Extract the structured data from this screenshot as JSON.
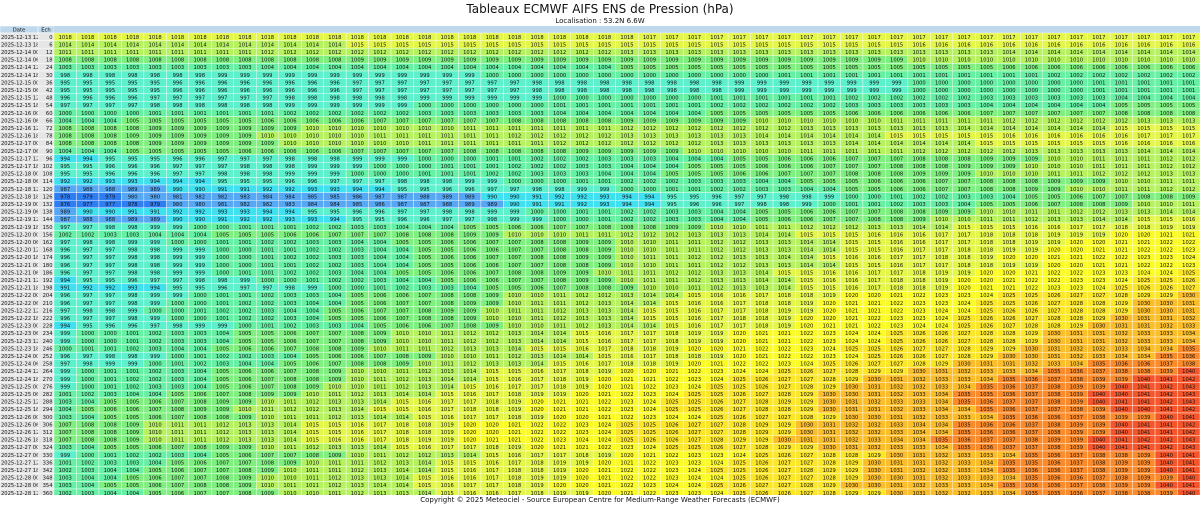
{
  "title": "Tableaux ECMWF AIFS ENS de Pression (hPa)",
  "subtitle": "Localisation : 53.2N 6.6W",
  "footer": "Copyright © 2025 Meteociel - Source European Centre for Medium-Range Weather Forecasts (ECMWF)",
  "chart_data": {
    "type": "table",
    "column_headers": [
      "Date",
      "Ech"
    ],
    "members": 51,
    "rows": [
      {
        "date": "2025-12-13 12Z",
        "ech": "0",
        "start": 1018,
        "end": 1017
      },
      {
        "date": "2025-12-13 18Z",
        "ech": "6",
        "start": 1014,
        "end": 1016
      },
      {
        "date": "2025-12-14 00Z",
        "ech": "12",
        "start": 1011,
        "end": 1014
      },
      {
        "date": "2025-12-14 06Z",
        "ech": "18",
        "start": 1008,
        "end": 1010
      },
      {
        "date": "2025-12-14 12Z",
        "ech": "24",
        "start": 1003,
        "end": 1006
      },
      {
        "date": "2025-12-14 18Z",
        "ech": "30",
        "start": 998,
        "end": 1002
      },
      {
        "date": "2025-12-15 00Z",
        "ech": "36",
        "start": 995,
        "end": 1001
      },
      {
        "date": "2025-12-15 06Z",
        "ech": "42",
        "start": 995,
        "end": 1001
      },
      {
        "date": "2025-12-15 12Z",
        "ech": "48",
        "start": 996,
        "end": 1004
      },
      {
        "date": "2025-12-15 18Z",
        "ech": "54",
        "start": 997,
        "end": 1005
      },
      {
        "date": "2025-12-16 00Z",
        "ech": "60",
        "start": 1000,
        "end": 1008
      },
      {
        "date": "2025-12-16 06Z",
        "ech": "66",
        "start": 1004,
        "end": 1013
      },
      {
        "date": "2025-12-16 12Z",
        "ech": "72",
        "start": 1008,
        "end": 1015
      },
      {
        "date": "2025-12-16 18Z",
        "ech": "78",
        "start": 1008,
        "end": 1017
      },
      {
        "date": "2025-12-17 00Z",
        "ech": "84",
        "start": 1008,
        "end": 1016
      },
      {
        "date": "2025-12-17 06Z",
        "ech": "90",
        "start": 1004,
        "end": 1014
      },
      {
        "date": "2025-12-17 12Z",
        "ech": "96",
        "start": 994,
        "end": 1012
      },
      {
        "date": "2025-12-17 18Z",
        "ech": "102",
        "start": 995,
        "end": 1012
      },
      {
        "date": "2025-12-18 00Z",
        "ech": "108",
        "start": 995,
        "end": 1013
      },
      {
        "date": "2025-12-18 06Z",
        "ech": "114",
        "start": 992,
        "end": 1011
      },
      {
        "date": "2025-12-18 12Z",
        "ech": "120",
        "start": 987,
        "end": 1012
      },
      {
        "date": "2025-12-18 18Z",
        "ech": "126",
        "start": 978,
        "end": 1009
      },
      {
        "date": "2025-12-19 00Z",
        "ech": "132",
        "start": 976,
        "end": 1011
      },
      {
        "date": "2025-12-19 06Z",
        "ech": "138",
        "start": 989,
        "end": 1014
      },
      {
        "date": "2025-12-19 12Z",
        "ech": "144",
        "start": 987,
        "end": 1016
      },
      {
        "date": "2025-12-19 18Z",
        "ech": "150",
        "start": 997,
        "end": 1019
      },
      {
        "date": "2025-12-20 00Z",
        "ech": "156",
        "start": 1002,
        "end": 1021
      },
      {
        "date": "2025-12-20 06Z",
        "ech": "162",
        "start": 997,
        "end": 1022
      },
      {
        "date": "2025-12-20 12Z",
        "ech": "168",
        "start": 996,
        "end": 1023
      },
      {
        "date": "2025-12-20 18Z",
        "ech": "174",
        "start": 996,
        "end": 1024
      },
      {
        "date": "2025-12-21 00Z",
        "ech": "180",
        "start": 996,
        "end": 1023
      },
      {
        "date": "2025-12-21 06Z",
        "ech": "186",
        "start": 996,
        "end": 1025
      },
      {
        "date": "2025-12-21 12Z",
        "ech": "192",
        "start": 994,
        "end": 1026
      },
      {
        "date": "2025-12-21 18Z",
        "ech": "198",
        "start": 991,
        "end": 1027
      },
      {
        "date": "2025-12-22 00Z",
        "ech": "204",
        "start": 996,
        "end": 1030
      },
      {
        "date": "2025-12-22 06Z",
        "ech": "210",
        "start": 996,
        "end": 1031
      },
      {
        "date": "2025-12-22 12Z",
        "ech": "216",
        "start": 997,
        "end": 1031
      },
      {
        "date": "2025-12-22 18Z",
        "ech": "222",
        "start": 996,
        "end": 1032
      },
      {
        "date": "2025-12-23 00Z",
        "ech": "228",
        "start": 994,
        "end": 1033
      },
      {
        "date": "2025-12-23 06Z",
        "ech": "234",
        "start": 999,
        "end": 1034
      },
      {
        "date": "2025-12-23 12Z",
        "ech": "240",
        "start": 999,
        "end": 1034
      },
      {
        "date": "2025-12-23 18Z",
        "ech": "246",
        "start": 1000,
        "end": 1035
      },
      {
        "date": "2025-12-24 00Z",
        "ech": "252",
        "start": 996,
        "end": 1036
      },
      {
        "date": "2025-12-24 06Z",
        "ech": "258",
        "start": 997,
        "end": 1038
      },
      {
        "date": "2025-12-24 12Z",
        "ech": "264",
        "start": 999,
        "end": 1040
      },
      {
        "date": "2025-12-24 18Z",
        "ech": "270",
        "start": 999,
        "end": 1042
      },
      {
        "date": "2025-12-25 00Z",
        "ech": "276",
        "start": 999,
        "end": 1043
      },
      {
        "date": "2025-12-25 06Z",
        "ech": "282",
        "start": 1001,
        "end": 1043
      },
      {
        "date": "2025-12-25 12Z",
        "ech": "288",
        "start": 1003,
        "end": 1043
      },
      {
        "date": "2025-12-25 18Z",
        "ech": "294",
        "start": 1004,
        "end": 1042
      },
      {
        "date": "2025-12-26 00Z",
        "ech": "300",
        "start": 1003,
        "end": 1041
      },
      {
        "date": "2025-12-26 06Z",
        "ech": "306",
        "start": 1007,
        "end": 1042
      },
      {
        "date": "2025-12-26 12Z",
        "ech": "312",
        "start": 1007,
        "end": 1042
      },
      {
        "date": "2025-12-26 18Z",
        "ech": "318",
        "start": 1007,
        "end": 1043
      },
      {
        "date": "2025-12-27 00Z",
        "ech": "324",
        "start": 1003,
        "end": 1043
      },
      {
        "date": "2025-12-27 06Z",
        "ech": "330",
        "start": 999,
        "end": 1041
      },
      {
        "date": "2025-12-27 12Z",
        "ech": "336",
        "start": 1001,
        "end": 1041
      },
      {
        "date": "2025-12-27 18Z",
        "ech": "342",
        "start": 1002,
        "end": 1041
      },
      {
        "date": "2025-12-28 00Z",
        "ech": "348",
        "start": 1003,
        "end": 1040
      },
      {
        "date": "2025-12-28 06Z",
        "ech": "354",
        "start": 1003,
        "end": 1041
      },
      {
        "date": "2025-12-28 12Z",
        "ech": "360",
        "start": 1002,
        "end": 1040
      }
    ]
  },
  "colors": {
    "header_bg": "#c0d8ec",
    "date_bg": "#e6e6e6",
    "grid_line": "#ffffff",
    "scale": [
      {
        "max": 979,
        "color": "#2f7df2"
      },
      {
        "max": 989,
        "color": "#56a8f5"
      },
      {
        "max": 994,
        "color": "#3fe0f0"
      },
      {
        "max": 999,
        "color": "#5df0cc"
      },
      {
        "max": 1004,
        "color": "#66f0a4"
      },
      {
        "max": 1009,
        "color": "#7ff080"
      },
      {
        "max": 1014,
        "color": "#b6f260"
      },
      {
        "max": 1019,
        "color": "#e4f64a"
      },
      {
        "max": 1024,
        "color": "#fbfb2a"
      },
      {
        "max": 1029,
        "color": "#fbe62a"
      },
      {
        "max": 1034,
        "color": "#fbbd2a"
      },
      {
        "max": 1039,
        "color": "#fb8a2a"
      },
      {
        "max": 9999,
        "color": "#f5552a"
      }
    ]
  }
}
